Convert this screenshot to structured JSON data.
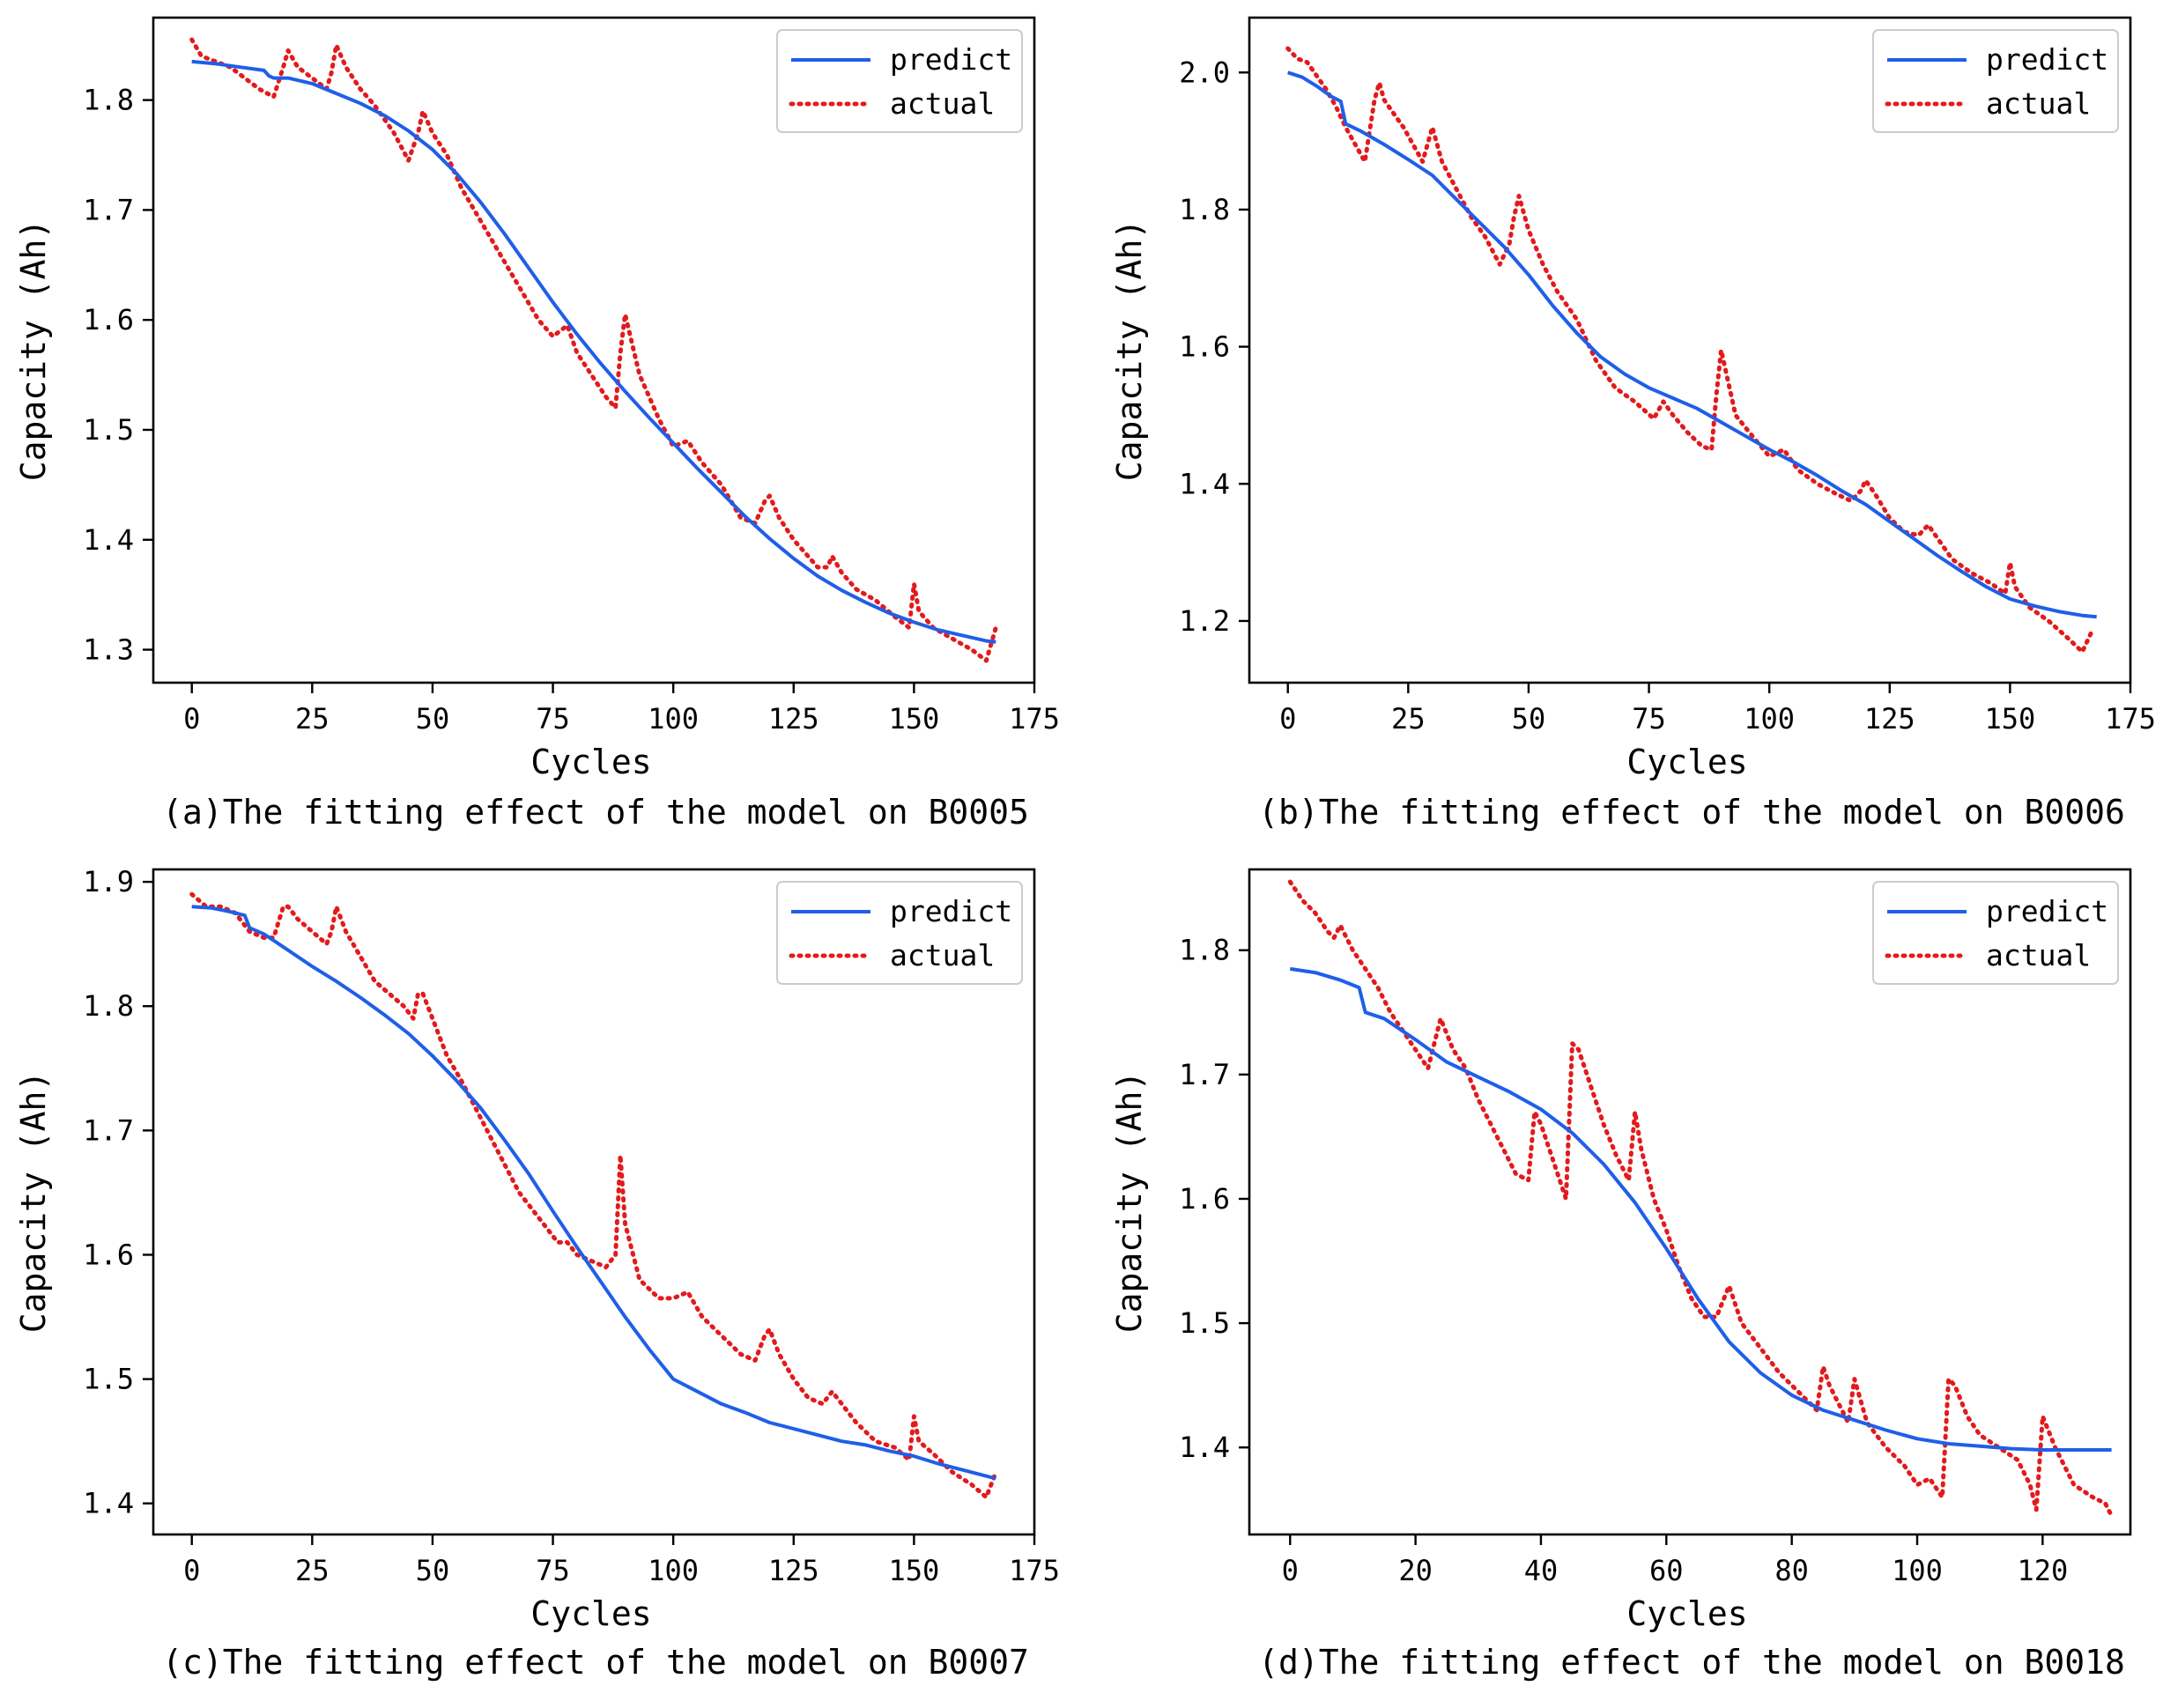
{
  "colors": {
    "predict": "#1f5fe8",
    "actual": "#e31a1c"
  },
  "chart_data": [
    {
      "type": "line",
      "caption": "(a)The fitting effect of the model on B0005",
      "xlabel": "Cycles",
      "ylabel": "Capacity (Ah)",
      "xlim": [
        -8,
        175
      ],
      "ylim": [
        1.27,
        1.875
      ],
      "xticks": [
        0,
        25,
        50,
        75,
        100,
        125,
        150,
        175
      ],
      "xtick_labels": [
        "0",
        "25",
        "50",
        "75",
        "100",
        "125",
        "150",
        "175"
      ],
      "yticks": [
        1.3,
        1.4,
        1.5,
        1.6,
        1.7,
        1.8
      ],
      "ytick_labels": [
        "1.3",
        "1.4",
        "1.5",
        "1.6",
        "1.7",
        "1.8"
      ],
      "legend": {
        "position": "top-right",
        "entries": [
          "predict",
          "actual"
        ]
      },
      "series": [
        {
          "name": "predict",
          "style": "solid",
          "x": [
            0,
            5,
            10,
            15,
            16,
            17,
            20,
            25,
            30,
            35,
            40,
            45,
            50,
            55,
            60,
            65,
            70,
            75,
            80,
            85,
            90,
            95,
            100,
            105,
            110,
            115,
            120,
            125,
            130,
            135,
            140,
            145,
            150,
            155,
            160,
            165,
            167
          ],
          "y": [
            1.835,
            1.833,
            1.83,
            1.827,
            1.822,
            1.82,
            1.82,
            1.815,
            1.806,
            1.797,
            1.786,
            1.772,
            1.755,
            1.733,
            1.707,
            1.678,
            1.647,
            1.616,
            1.587,
            1.56,
            1.535,
            1.511,
            1.488,
            1.465,
            1.443,
            1.421,
            1.401,
            1.383,
            1.367,
            1.354,
            1.343,
            1.333,
            1.325,
            1.318,
            1.313,
            1.308,
            1.307
          ]
        },
        {
          "name": "actual",
          "style": "dotted",
          "x": [
            0,
            2,
            5,
            8,
            11,
            14,
            17,
            19,
            20,
            22,
            25,
            28,
            29,
            30,
            32,
            35,
            38,
            42,
            45,
            47,
            48,
            50,
            53,
            56,
            60,
            64,
            68,
            72,
            75,
            78,
            80,
            83,
            86,
            88,
            89,
            90,
            93,
            97,
            100,
            103,
            106,
            110,
            114,
            117,
            119,
            120,
            122,
            125,
            128,
            130,
            132,
            133,
            135,
            138,
            142,
            146,
            149,
            150,
            151,
            154,
            158,
            162,
            165,
            167
          ],
          "y": [
            1.855,
            1.84,
            1.835,
            1.83,
            1.82,
            1.81,
            1.803,
            1.83,
            1.845,
            1.83,
            1.82,
            1.81,
            1.825,
            1.85,
            1.83,
            1.81,
            1.795,
            1.77,
            1.745,
            1.77,
            1.79,
            1.77,
            1.75,
            1.72,
            1.69,
            1.66,
            1.63,
            1.6,
            1.585,
            1.595,
            1.57,
            1.55,
            1.53,
            1.52,
            1.57,
            1.605,
            1.55,
            1.51,
            1.485,
            1.49,
            1.47,
            1.45,
            1.42,
            1.415,
            1.435,
            1.44,
            1.42,
            1.4,
            1.385,
            1.375,
            1.375,
            1.385,
            1.37,
            1.355,
            1.345,
            1.33,
            1.32,
            1.36,
            1.335,
            1.32,
            1.31,
            1.3,
            1.29,
            1.32
          ]
        }
      ]
    },
    {
      "type": "line",
      "caption": "(b)The fitting effect of the model on B0006",
      "xlabel": "Cycles",
      "ylabel": "Capacity (Ah)",
      "xlim": [
        -8,
        175
      ],
      "ylim": [
        1.11,
        2.08
      ],
      "xticks": [
        0,
        25,
        50,
        75,
        100,
        125,
        150,
        175
      ],
      "xtick_labels": [
        "0",
        "25",
        "50",
        "75",
        "100",
        "125",
        "150",
        "175"
      ],
      "yticks": [
        1.2,
        1.4,
        1.6,
        1.8,
        2.0
      ],
      "ytick_labels": [
        "1.2",
        "1.4",
        "1.6",
        "1.8",
        "2.0"
      ],
      "legend": {
        "position": "top-right",
        "entries": [
          "predict",
          "actual"
        ]
      },
      "series": [
        {
          "name": "predict",
          "style": "solid",
          "x": [
            0,
            3,
            6,
            9,
            11,
            12,
            15,
            20,
            25,
            30,
            35,
            40,
            45,
            50,
            55,
            60,
            65,
            70,
            75,
            80,
            85,
            90,
            95,
            100,
            105,
            110,
            115,
            120,
            125,
            130,
            135,
            140,
            145,
            150,
            155,
            160,
            165,
            168
          ],
          "y": [
            2.0,
            1.993,
            1.98,
            1.965,
            1.958,
            1.925,
            1.915,
            1.895,
            1.873,
            1.85,
            1.815,
            1.78,
            1.745,
            1.705,
            1.66,
            1.62,
            1.585,
            1.56,
            1.54,
            1.525,
            1.51,
            1.49,
            1.47,
            1.45,
            1.432,
            1.412,
            1.39,
            1.37,
            1.345,
            1.32,
            1.295,
            1.272,
            1.25,
            1.232,
            1.222,
            1.214,
            1.208,
            1.206
          ]
        },
        {
          "name": "actual",
          "style": "dotted",
          "x": [
            0,
            2,
            4,
            6,
            8,
            10,
            12,
            14,
            16,
            18,
            19,
            20,
            22,
            24,
            26,
            28,
            29,
            30,
            32,
            35,
            38,
            41,
            44,
            46,
            47,
            48,
            50,
            53,
            56,
            60,
            64,
            68,
            72,
            76,
            78,
            80,
            83,
            86,
            88,
            89,
            90,
            93,
            97,
            100,
            103,
            106,
            110,
            114,
            117,
            119,
            120,
            122,
            125,
            128,
            131,
            133,
            135,
            138,
            142,
            146,
            149,
            150,
            151,
            154,
            158,
            162,
            165,
            167
          ],
          "y": [
            2.035,
            2.02,
            2.015,
            1.995,
            1.975,
            1.95,
            1.92,
            1.895,
            1.87,
            1.96,
            1.985,
            1.96,
            1.94,
            1.92,
            1.895,
            1.87,
            1.895,
            1.92,
            1.87,
            1.83,
            1.79,
            1.76,
            1.72,
            1.75,
            1.79,
            1.82,
            1.77,
            1.72,
            1.68,
            1.64,
            1.58,
            1.54,
            1.52,
            1.495,
            1.52,
            1.5,
            1.475,
            1.455,
            1.45,
            1.53,
            1.595,
            1.5,
            1.465,
            1.44,
            1.45,
            1.42,
            1.4,
            1.385,
            1.375,
            1.39,
            1.405,
            1.385,
            1.35,
            1.33,
            1.325,
            1.34,
            1.32,
            1.29,
            1.27,
            1.255,
            1.24,
            1.285,
            1.25,
            1.22,
            1.2,
            1.175,
            1.155,
            1.185
          ]
        }
      ]
    },
    {
      "type": "line",
      "caption": "(c)The fitting effect of the model on B0007",
      "xlabel": "Cycles",
      "ylabel": "Capacity (Ah)",
      "xlim": [
        -8,
        175
      ],
      "ylim": [
        1.375,
        1.91
      ],
      "xticks": [
        0,
        25,
        50,
        75,
        100,
        125,
        150,
        175
      ],
      "xtick_labels": [
        "0",
        "25",
        "50",
        "75",
        "100",
        "125",
        "150",
        "175"
      ],
      "yticks": [
        1.4,
        1.5,
        1.6,
        1.7,
        1.8,
        1.9
      ],
      "ytick_labels": [
        "1.4",
        "1.5",
        "1.6",
        "1.7",
        "1.8",
        "1.9"
      ],
      "legend": {
        "position": "top-right",
        "entries": [
          "predict",
          "actual"
        ]
      },
      "series": [
        {
          "name": "predict",
          "style": "solid",
          "x": [
            0,
            4,
            8,
            11,
            12,
            15,
            20,
            25,
            30,
            35,
            40,
            45,
            50,
            55,
            60,
            65,
            70,
            75,
            80,
            85,
            90,
            95,
            100,
            105,
            110,
            115,
            120,
            125,
            130,
            135,
            140,
            145,
            150,
            155,
            160,
            165,
            167
          ],
          "y": [
            1.88,
            1.879,
            1.876,
            1.873,
            1.863,
            1.858,
            1.845,
            1.832,
            1.82,
            1.807,
            1.793,
            1.778,
            1.76,
            1.74,
            1.718,
            1.692,
            1.665,
            1.635,
            1.606,
            1.578,
            1.55,
            1.524,
            1.5,
            1.49,
            1.48,
            1.473,
            1.465,
            1.46,
            1.455,
            1.45,
            1.447,
            1.442,
            1.438,
            1.432,
            1.427,
            1.422,
            1.42
          ]
        },
        {
          "name": "actual",
          "style": "dotted",
          "x": [
            0,
            3,
            6,
            9,
            12,
            15,
            17,
            19,
            20,
            22,
            25,
            28,
            29,
            30,
            32,
            35,
            38,
            41,
            44,
            46,
            47,
            48,
            50,
            53,
            56,
            60,
            64,
            68,
            72,
            76,
            78,
            80,
            83,
            86,
            88,
            89,
            90,
            93,
            97,
            100,
            103,
            106,
            110,
            114,
            117,
            119,
            120,
            122,
            125,
            128,
            131,
            133,
            135,
            138,
            142,
            146,
            149,
            150,
            151,
            154,
            158,
            162,
            165,
            167
          ],
          "y": [
            1.89,
            1.88,
            1.88,
            1.875,
            1.86,
            1.855,
            1.855,
            1.88,
            1.88,
            1.87,
            1.86,
            1.85,
            1.86,
            1.88,
            1.86,
            1.84,
            1.82,
            1.81,
            1.8,
            1.79,
            1.81,
            1.81,
            1.79,
            1.76,
            1.74,
            1.71,
            1.68,
            1.65,
            1.63,
            1.61,
            1.61,
            1.6,
            1.595,
            1.59,
            1.6,
            1.68,
            1.625,
            1.58,
            1.565,
            1.565,
            1.57,
            1.55,
            1.535,
            1.52,
            1.515,
            1.535,
            1.54,
            1.52,
            1.5,
            1.485,
            1.48,
            1.49,
            1.48,
            1.465,
            1.45,
            1.445,
            1.435,
            1.47,
            1.45,
            1.44,
            1.425,
            1.415,
            1.405,
            1.425
          ]
        }
      ]
    },
    {
      "type": "line",
      "caption": "(d)The fitting effect of the model on B0018",
      "xlabel": "Cycles",
      "ylabel": "Capacity (Ah)",
      "xlim": [
        -6.5,
        134
      ],
      "ylim": [
        1.33,
        1.865
      ],
      "xticks": [
        0,
        20,
        40,
        60,
        80,
        100,
        120
      ],
      "xtick_labels": [
        "0",
        "20",
        "40",
        "60",
        "80",
        "100",
        "120"
      ],
      "yticks": [
        1.4,
        1.5,
        1.6,
        1.7,
        1.8
      ],
      "ytick_labels": [
        "1.4",
        "1.5",
        "1.6",
        "1.7",
        "1.8"
      ],
      "legend": {
        "position": "top-right",
        "entries": [
          "predict",
          "actual"
        ]
      },
      "series": [
        {
          "name": "predict",
          "style": "solid",
          "x": [
            0,
            4,
            8,
            11,
            12,
            15,
            20,
            25,
            30,
            35,
            40,
            45,
            50,
            55,
            60,
            65,
            70,
            75,
            80,
            85,
            90,
            95,
            100,
            105,
            110,
            115,
            120,
            125,
            131
          ],
          "y": [
            1.785,
            1.782,
            1.776,
            1.77,
            1.75,
            1.745,
            1.728,
            1.71,
            1.698,
            1.686,
            1.672,
            1.653,
            1.628,
            1.597,
            1.56,
            1.52,
            1.485,
            1.46,
            1.442,
            1.43,
            1.422,
            1.414,
            1.407,
            1.403,
            1.401,
            1.399,
            1.398,
            1.398,
            1.398
          ]
        },
        {
          "name": "actual",
          "style": "dotted",
          "x": [
            0,
            2,
            4,
            6,
            7,
            8,
            10,
            12,
            14,
            16,
            18,
            20,
            22,
            24,
            26,
            28,
            30,
            32,
            34,
            36,
            38,
            39,
            40,
            42,
            44,
            45,
            46,
            48,
            50,
            52,
            54,
            55,
            56,
            58,
            60,
            62,
            64,
            66,
            68,
            70,
            72,
            75,
            78,
            80,
            82,
            84,
            85,
            86,
            88,
            89,
            90,
            92,
            95,
            98,
            100,
            102,
            104,
            105,
            106,
            108,
            110,
            113,
            116,
            118,
            119,
            120,
            122,
            125,
            128,
            130,
            131
          ],
          "y": [
            1.855,
            1.84,
            1.83,
            1.815,
            1.81,
            1.82,
            1.8,
            1.785,
            1.77,
            1.75,
            1.735,
            1.72,
            1.705,
            1.745,
            1.72,
            1.705,
            1.68,
            1.66,
            1.64,
            1.62,
            1.615,
            1.67,
            1.66,
            1.63,
            1.6,
            1.725,
            1.72,
            1.69,
            1.66,
            1.635,
            1.615,
            1.67,
            1.64,
            1.6,
            1.575,
            1.545,
            1.52,
            1.505,
            1.505,
            1.53,
            1.5,
            1.48,
            1.46,
            1.45,
            1.44,
            1.43,
            1.465,
            1.45,
            1.43,
            1.42,
            1.455,
            1.42,
            1.4,
            1.385,
            1.37,
            1.375,
            1.36,
            1.455,
            1.45,
            1.425,
            1.41,
            1.4,
            1.39,
            1.37,
            1.35,
            1.425,
            1.4,
            1.37,
            1.36,
            1.355,
            1.345
          ]
        }
      ]
    }
  ]
}
